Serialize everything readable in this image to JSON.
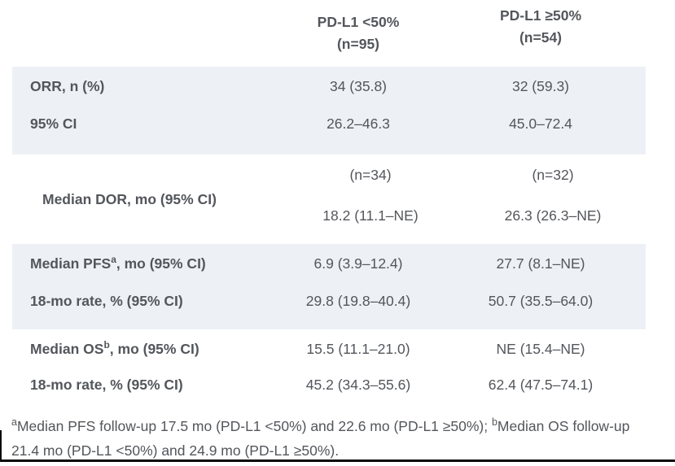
{
  "colors": {
    "band": "#edf1f6",
    "text": "#53565b",
    "rule": "#0a0a0a"
  },
  "table": {
    "columns": [
      {
        "label": "PD-L1 <50%",
        "n": "(n=95)"
      },
      {
        "label": "PD-L1 ≥50%",
        "n": "(n=54)"
      }
    ],
    "sections": [
      {
        "rows": [
          {
            "label": "ORR, n (%)",
            "col1": "34 (35.8)",
            "col2": "32 (59.3)"
          },
          {
            "label": "95% CI",
            "col1": "26.2–46.3",
            "col2": "45.0–72.4"
          }
        ]
      },
      {
        "dor": {
          "label": "Median DOR, mo (95% CI)",
          "col1_n": "(n=34)",
          "col1_value": "18.2 (11.1–NE)",
          "col2_n": "(n=32)",
          "col2_value": "26.3 (26.3–NE)"
        }
      },
      {
        "rows": [
          {
            "label_pre": "Median PFS",
            "label_sup": "a",
            "label_post": ", mo (95% CI)",
            "col1": "6.9 (3.9–12.4)",
            "col2": "27.7 (8.1–NE)"
          },
          {
            "label": "18-mo rate, % (95% CI)",
            "col1": "29.8 (19.8–40.4)",
            "col2": "50.7 (35.5–64.0)"
          }
        ]
      },
      {
        "rows": [
          {
            "label_pre": "Median OS",
            "label_sup": "b",
            "label_post": ", mo (95% CI)",
            "col1": "15.5 (11.1–21.0)",
            "col2": "NE (15.4–NE)"
          },
          {
            "label": "18-mo rate, % (95% CI)",
            "col1": "45.2 (34.3–55.6)",
            "col2": "62.4 (47.5–74.1)"
          }
        ]
      }
    ]
  },
  "footnote": {
    "sup_a": "a",
    "part_a": "Median PFS follow-up 17.5 mo (PD-L1 <50%) and 22.6 mo (PD-L1 ≥50%); ",
    "sup_b": "b",
    "part_b": "Median OS follow-up 21.4 mo (PD-L1 <50%) and 24.9 mo (PD-L1 ≥50%)."
  },
  "chart_data": {
    "type": "table",
    "columns": [
      "",
      "PD-L1 <50% (n=95)",
      "PD-L1 ≥50% (n=54)"
    ],
    "rows": [
      [
        "ORR, n (%)",
        "34 (35.8)",
        "32 (59.3)"
      ],
      [
        "95% CI",
        "26.2–46.3",
        "45.0–72.4"
      ],
      [
        "Median DOR, mo (95% CI)",
        "(n=34) 18.2 (11.1–NE)",
        "(n=32) 26.3 (26.3–NE)"
      ],
      [
        "Median PFS(a), mo (95% CI)",
        "6.9 (3.9–12.4)",
        "27.7 (8.1–NE)"
      ],
      [
        "18-mo rate, % (95% CI)",
        "29.8 (19.8–40.4)",
        "50.7 (35.5–64.0)"
      ],
      [
        "Median OS(b), mo (95% CI)",
        "15.5 (11.1–21.0)",
        "NE (15.4–NE)"
      ],
      [
        "18-mo rate, % (95% CI)",
        "45.2 (34.3–55.6)",
        "62.4 (47.5–74.1)"
      ]
    ]
  }
}
